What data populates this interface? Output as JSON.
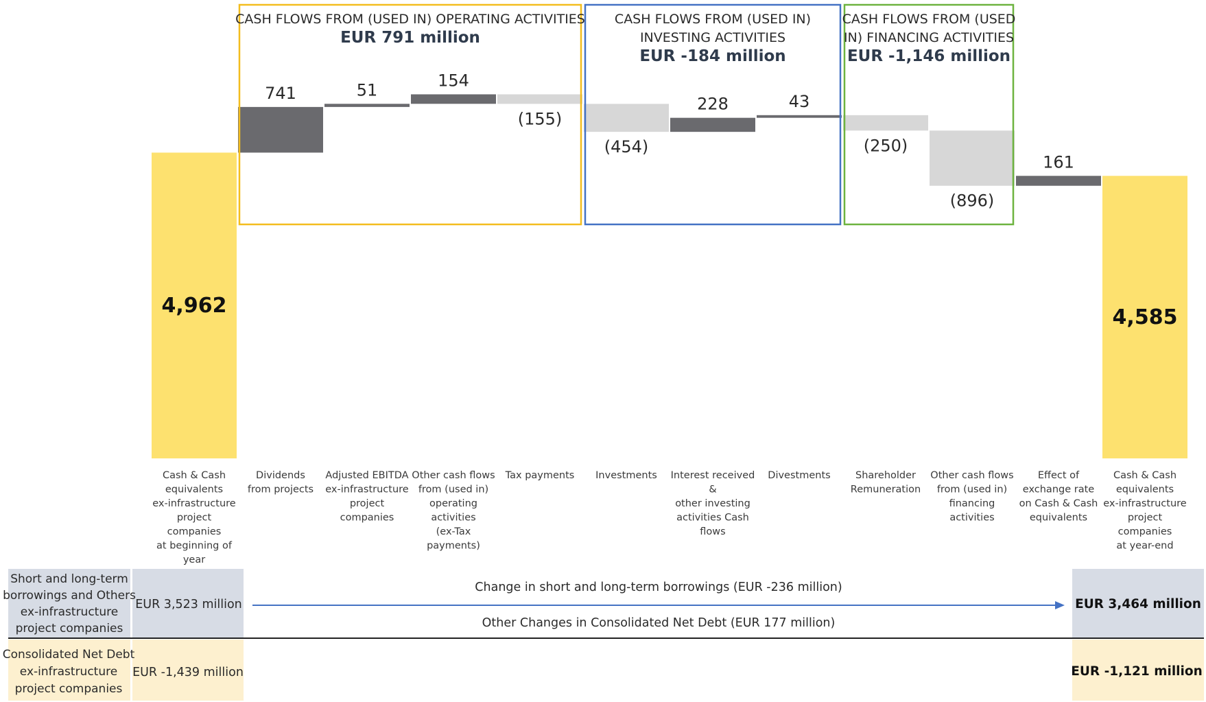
{
  "colors": {
    "yellow": "#fde16f",
    "positive": "#6a6a6e",
    "negative": "#d7d7d7",
    "operating_box": "#f3bd1e",
    "investing_box": "#4472c4",
    "financing_box": "#6db33f",
    "debt_row": "#d7dce5",
    "netdebt_row": "#fdf0cf",
    "arrow": "#4472c4"
  },
  "chart_data": {
    "type": "waterfall",
    "unit": "EUR million",
    "bars": [
      {
        "key": "start",
        "label": "Cash & Cash equivalents ex-infrastructure project companies at beginning of year",
        "label_lines": [
          "Cash & Cash",
          "equivalents",
          "ex-infrastructure",
          "project",
          "companies",
          "at beginning of",
          "year"
        ],
        "value": 4962,
        "value_label": "4,962",
        "kind": "total"
      },
      {
        "key": "dividends",
        "label": "Dividends from projects",
        "label_lines": [
          "Dividends",
          "from projects"
        ],
        "value": 741,
        "value_label": "741",
        "kind": "delta"
      },
      {
        "key": "ebitda",
        "label": "Adjusted EBITDA ex-infrastructure project companies",
        "label_lines": [
          "Adjusted EBITDA",
          "ex-infrastructure",
          "project",
          "companies"
        ],
        "value": 51,
        "value_label": "51",
        "kind": "delta"
      },
      {
        "key": "other_operating",
        "label": "Other cash flows from (used in) operating activities (ex-Tax payments)",
        "label_lines": [
          "Other cash flows",
          "from (used in)",
          "operating",
          "activities",
          "(ex-Tax",
          "payments)"
        ],
        "value": 154,
        "value_label": "154",
        "kind": "delta"
      },
      {
        "key": "tax",
        "label": "Tax payments",
        "label_lines": [
          "Tax payments"
        ],
        "value": -155,
        "value_label": "(155)",
        "kind": "delta"
      },
      {
        "key": "investments",
        "label": "Investments",
        "label_lines": [
          "Investments"
        ],
        "value": -454,
        "value_label": "(454)",
        "kind": "delta"
      },
      {
        "key": "interest",
        "label": "Interest received & other investing activities Cash flows",
        "label_lines": [
          "Interest received",
          "&",
          "other investing",
          "activities Cash",
          "flows"
        ],
        "value": 228,
        "value_label": "228",
        "kind": "delta"
      },
      {
        "key": "divestments",
        "label": "Divestments",
        "label_lines": [
          "Divestments"
        ],
        "value": 43,
        "value_label": "43",
        "kind": "delta"
      },
      {
        "key": "shareholder",
        "label": "Shareholder Remuneration",
        "label_lines": [
          "Shareholder",
          "Remuneration"
        ],
        "value": -250,
        "value_label": "(250)",
        "kind": "delta"
      },
      {
        "key": "other_financing",
        "label": "Other cash flows from (used in) financing activities",
        "label_lines": [
          "Other cash flows",
          "from (used in)",
          "financing",
          "activities"
        ],
        "value": -896,
        "value_label": "(896)",
        "kind": "delta"
      },
      {
        "key": "fx",
        "label": "Effect of exchange rate on Cash & Cash equivalents",
        "label_lines": [
          "Effect of",
          "exchange rate",
          "on Cash & Cash",
          "equivalents"
        ],
        "value": 161,
        "value_label": "161",
        "kind": "delta"
      },
      {
        "key": "end",
        "label": "Cash & Cash equivalents ex-infrastructure project companies at year-end",
        "label_lines": [
          "Cash & Cash",
          "equivalents",
          "ex-infrastructure",
          "project",
          "companies",
          "at year-end"
        ],
        "value": 4585,
        "value_label": "4,585",
        "kind": "total"
      }
    ],
    "groups": [
      {
        "key": "operating",
        "title_lines": [
          "CASH FLOWS FROM (USED IN) OPERATING ACTIVITIES"
        ],
        "amount": "EUR 791 million",
        "from_bar": 1,
        "to_bar": 4,
        "color_key": "operating_box"
      },
      {
        "key": "investing",
        "title_lines": [
          "CASH FLOWS FROM (USED IN)",
          "INVESTING ACTIVITIES"
        ],
        "amount": "EUR -184 million",
        "from_bar": 5,
        "to_bar": 7,
        "color_key": "investing_box"
      },
      {
        "key": "financing",
        "title_lines": [
          "CASH FLOWS FROM (USED",
          "IN) FINANCING ACTIVITIES"
        ],
        "amount": "EUR -1,146 million",
        "from_bar": 8,
        "to_bar": 9,
        "color_key": "financing_box"
      }
    ]
  },
  "bottom_table": {
    "debt_row": {
      "label_lines": [
        "Short and long-term",
        "borrowings and Others",
        "ex-infrastructure",
        "project companies"
      ],
      "start": "EUR 3,523 million",
      "end": "EUR 3,464 million",
      "change_text": "Change in short and long-term borrowings (EUR -236 million)",
      "other_text": "Other Changes in Consolidated Net Debt (EUR 177 million)"
    },
    "netdebt_row": {
      "label_lines": [
        "Consolidated Net Debt",
        "ex-infrastructure",
        "project companies"
      ],
      "start": "EUR -1,439 million",
      "end": "EUR -1,121 million"
    }
  }
}
